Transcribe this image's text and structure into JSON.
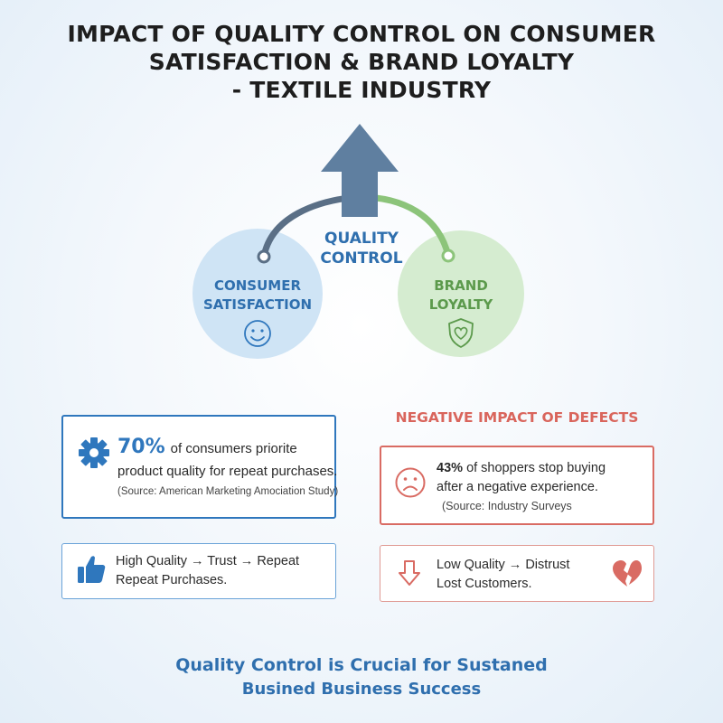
{
  "title": {
    "line1": "IMPACT OF QUALITY CONTROL ON CONSUMER",
    "line2": "SATISFACTION & BRAND LOYALTY",
    "line3": "- TEXTILE INDUSTRY"
  },
  "diagram": {
    "center_label_line1": "QUALITY",
    "center_label_line2": "CONTROL",
    "left_circle_line1": "CONSUMER",
    "left_circle_line2": "SATISFACTION",
    "right_circle_line1": "BRAND",
    "right_circle_line2": "LOYALTY",
    "colors": {
      "arrow": "#5f7fa0",
      "left_circle": "#cfe4f5",
      "right_circle": "#d5ecd0",
      "left_path": "#5a6f86",
      "right_path": "#8cc47a"
    }
  },
  "stat_box": {
    "percent": "70%",
    "line1_rest": "of consumers priorite",
    "line2": "product quality for repeat purchases.",
    "source": "(Source: American Marketing Amociation Study)",
    "icon": "gear-icon"
  },
  "chain_box": {
    "line1": "High Quality → Trust → Repeat",
    "line2": "Repeat Purchases.",
    "icon": "thumbs-up-icon"
  },
  "negative": {
    "heading": "NEGATIVE IMPACT OF DEFECTS",
    "percent": "43%",
    "line1_rest": "of shoppers stop buying",
    "line2": "after a negative experience.",
    "source": "(Source: Industry Surveys",
    "icon": "sad-face-icon"
  },
  "low_box": {
    "line1": "Low Quality → Distrust",
    "line2": "Lost Customers.",
    "icons": [
      "down-arrow-icon",
      "broken-heart-icon"
    ]
  },
  "footer": {
    "line1": "Quality Control is Crucial for Sustaned",
    "line2": "Busined Business Success"
  }
}
